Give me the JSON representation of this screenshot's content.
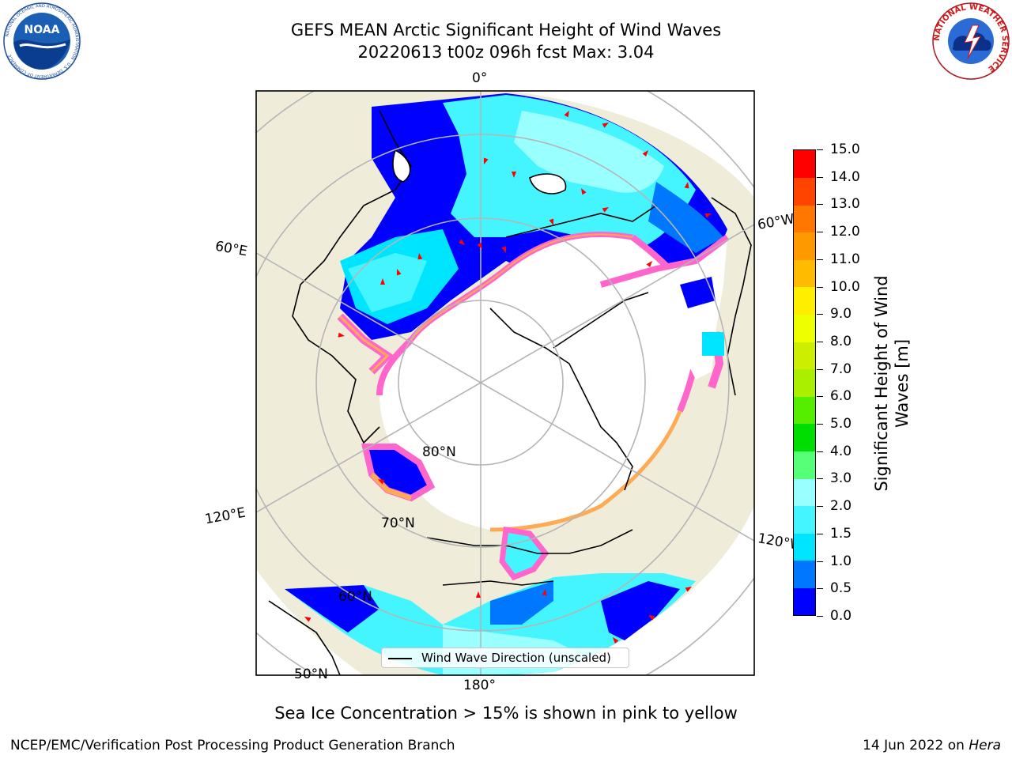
{
  "title": {
    "line1": "GEFS MEAN Arctic Significant Height of Wind Waves",
    "line2": "20220613 t00z 096h fcst   Max: 3.04"
  },
  "logos": {
    "noaa": {
      "text": "NOAA",
      "ring_text": "NATIONAL OCEANIC AND ATMOSPHERIC ADMINISTRATION · U.S. DEPARTMENT OF COMMERCE"
    },
    "nws": {
      "ring_text": "NATIONAL WEATHER SERVICE"
    }
  },
  "map": {
    "projection": "north polar stereographic",
    "longitude_labels": [
      "0°",
      "60°W",
      "120°W",
      "180°",
      "120°E",
      "60°E"
    ],
    "latitude_labels": [
      "80°N",
      "70°N",
      "60°N",
      "50°N"
    ],
    "legend": "Wind Wave Direction (unscaled)",
    "colors": {
      "land": "#efedda",
      "ocean_low": "#0000ff",
      "ice": "#ffffff",
      "ice_edge_pink": "#ff66cc",
      "ice_edge_orange": "#ffaa55",
      "arrow": "#ff0000"
    }
  },
  "colorbar": {
    "label": "Significant Height of Wind\nWaves [m]",
    "ticks": [
      "0.0",
      "0.5",
      "1.0",
      "1.5",
      "2.0",
      "3.0",
      "4.0",
      "5.0",
      "6.0",
      "7.0",
      "8.0",
      "9.0",
      "10.0",
      "11.0",
      "12.0",
      "13.0",
      "14.0",
      "15.0"
    ],
    "colors": [
      "#0000ff",
      "#0077ff",
      "#00e5ff",
      "#44f5ff",
      "#99ffff",
      "#55ff77",
      "#00dd00",
      "#55ee00",
      "#aaee00",
      "#ccee00",
      "#eeff00",
      "#ffee00",
      "#ffbb00",
      "#ff9900",
      "#ff7700",
      "#ff4400",
      "#ff0000"
    ]
  },
  "footer": {
    "subtitle": "Sea Ice Concentration > 15% is shown in pink to yellow",
    "left": "NCEP/EMC/Verification Post Processing Product Generation Branch",
    "right_date": "14 Jun 2022 on ",
    "right_host": "Hera"
  }
}
